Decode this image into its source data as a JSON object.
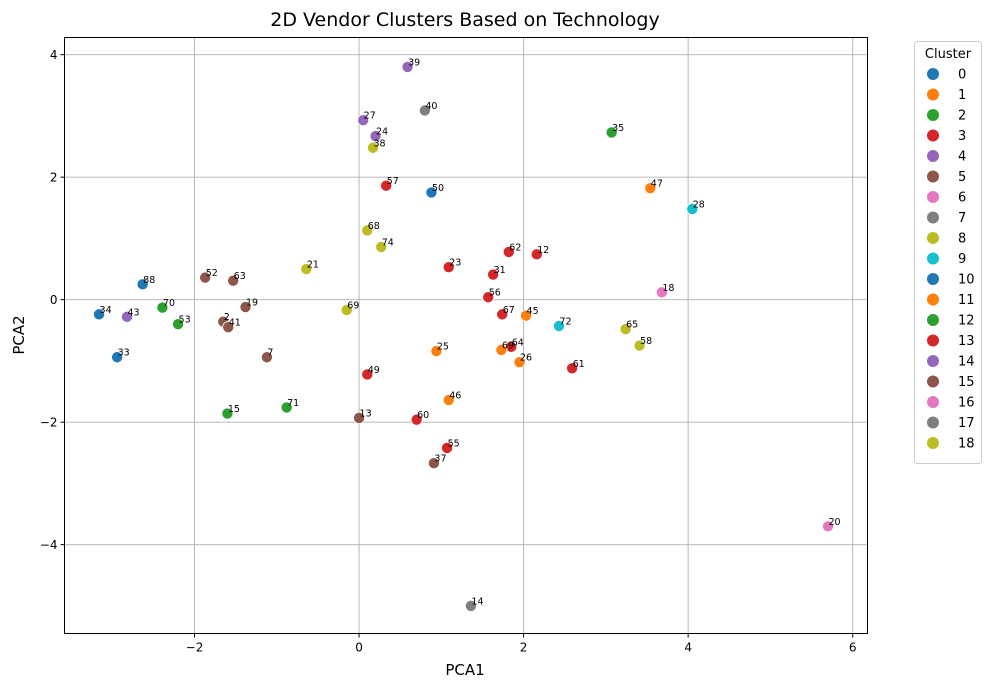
{
  "chart_data": {
    "type": "scatter",
    "title": "2D Vendor Clusters Based on Technology",
    "xlabel": "PCA1",
    "ylabel": "PCA2",
    "xlim": [
      -3.58,
      6.18
    ],
    "ylim": [
      -5.45,
      4.28
    ],
    "xticks": [
      -2,
      0,
      2,
      4,
      6
    ],
    "yticks": [
      -4,
      -2,
      0,
      2,
      4
    ],
    "xtick_labels": [
      "−2",
      "0",
      "2",
      "4",
      "6"
    ],
    "ytick_labels": [
      "−4",
      "−2",
      "0",
      "2",
      "4"
    ],
    "grid": true,
    "legend_title": "Cluster",
    "legend_position": "outside-right",
    "clusters": [
      {
        "name": "0",
        "color": "#1f77b4"
      },
      {
        "name": "1",
        "color": "#ff7f0e"
      },
      {
        "name": "2",
        "color": "#2ca02c"
      },
      {
        "name": "3",
        "color": "#d62728"
      },
      {
        "name": "4",
        "color": "#9467bd"
      },
      {
        "name": "5",
        "color": "#8c564b"
      },
      {
        "name": "6",
        "color": "#e377c2"
      },
      {
        "name": "7",
        "color": "#7f7f7f"
      },
      {
        "name": "8",
        "color": "#bcbd22"
      },
      {
        "name": "9",
        "color": "#17becf"
      },
      {
        "name": "10",
        "color": "#1f77b4"
      },
      {
        "name": "11",
        "color": "#ff7f0e"
      },
      {
        "name": "12",
        "color": "#2ca02c"
      },
      {
        "name": "13",
        "color": "#d62728"
      },
      {
        "name": "14",
        "color": "#9467bd"
      },
      {
        "name": "15",
        "color": "#8c564b"
      },
      {
        "name": "16",
        "color": "#e377c2"
      },
      {
        "name": "17",
        "color": "#7f7f7f"
      },
      {
        "name": "18",
        "color": "#bcbd22"
      }
    ],
    "points": [
      {
        "x": 0.59,
        "y": 3.8,
        "color": "#9467bd",
        "label": "39"
      },
      {
        "x": 0.05,
        "y": 2.93,
        "color": "#9467bd",
        "label": "27"
      },
      {
        "x": 0.8,
        "y": 3.09,
        "color": "#7f7f7f",
        "label": "40"
      },
      {
        "x": 0.2,
        "y": 2.67,
        "color": "#9467bd",
        "label": "24"
      },
      {
        "x": 0.17,
        "y": 2.48,
        "color": "#bcbd22",
        "label": "38"
      },
      {
        "x": 3.07,
        "y": 2.73,
        "color": "#2ca02c",
        "label": "35"
      },
      {
        "x": 0.33,
        "y": 1.86,
        "color": "#d62728",
        "label": "57"
      },
      {
        "x": 0.88,
        "y": 1.75,
        "color": "#1f77b4",
        "label": "50"
      },
      {
        "x": 3.54,
        "y": 1.82,
        "color": "#ff7f0e",
        "label": "47"
      },
      {
        "x": 4.05,
        "y": 1.48,
        "color": "#17becf",
        "label": "28"
      },
      {
        "x": 0.1,
        "y": 1.13,
        "color": "#bcbd22",
        "label": "68"
      },
      {
        "x": 0.27,
        "y": 0.86,
        "color": "#bcbd22",
        "label": "74"
      },
      {
        "x": -0.64,
        "y": 0.5,
        "color": "#bcbd22",
        "label": "21"
      },
      {
        "x": 1.82,
        "y": 0.78,
        "color": "#d62728",
        "label": "62"
      },
      {
        "x": 2.16,
        "y": 0.74,
        "color": "#d62728",
        "label": "12"
      },
      {
        "x": 1.09,
        "y": 0.53,
        "color": "#d62728",
        "label": "23"
      },
      {
        "x": 1.63,
        "y": 0.41,
        "color": "#d62728",
        "label": "31"
      },
      {
        "x": 1.57,
        "y": 0.04,
        "color": "#d62728",
        "label": "56"
      },
      {
        "x": 1.74,
        "y": -0.24,
        "color": "#d62728",
        "label": "67"
      },
      {
        "x": 2.03,
        "y": -0.26,
        "color": "#ff7f0e",
        "label": "45"
      },
      {
        "x": 2.43,
        "y": -0.43,
        "color": "#17becf",
        "label": "72"
      },
      {
        "x": 3.24,
        "y": -0.48,
        "color": "#bcbd22",
        "label": "65"
      },
      {
        "x": 3.41,
        "y": -0.75,
        "color": "#bcbd22",
        "label": "58"
      },
      {
        "x": 3.68,
        "y": 0.12,
        "color": "#e377c2",
        "label": "18"
      },
      {
        "x": 1.85,
        "y": -0.77,
        "color": "#d62728",
        "label": "64"
      },
      {
        "x": 1.73,
        "y": -0.82,
        "color": "#ff7f0e",
        "label": "69"
      },
      {
        "x": 1.95,
        "y": -1.02,
        "color": "#ff7f0e",
        "label": "26"
      },
      {
        "x": 2.59,
        "y": -1.12,
        "color": "#d62728",
        "label": "61"
      },
      {
        "x": 0.94,
        "y": -0.84,
        "color": "#ff7f0e",
        "label": "25"
      },
      {
        "x": 0.1,
        "y": -1.22,
        "color": "#d62728",
        "label": "49"
      },
      {
        "x": 1.09,
        "y": -1.64,
        "color": "#ff7f0e",
        "label": "46"
      },
      {
        "x": -0.15,
        "y": -0.17,
        "color": "#bcbd22",
        "label": "69"
      },
      {
        "x": 0.0,
        "y": -1.93,
        "color": "#8c564b",
        "label": "13"
      },
      {
        "x": 0.7,
        "y": -1.96,
        "color": "#d62728",
        "label": "60"
      },
      {
        "x": 1.07,
        "y": -2.42,
        "color": "#d62728",
        "label": "55"
      },
      {
        "x": 0.91,
        "y": -2.67,
        "color": "#8c564b",
        "label": "37"
      },
      {
        "x": 1.36,
        "y": -5.0,
        "color": "#7f7f7f",
        "label": "14"
      },
      {
        "x": 5.7,
        "y": -3.7,
        "color": "#e377c2",
        "label": "20"
      },
      {
        "x": -0.88,
        "y": -1.76,
        "color": "#2ca02c",
        "label": "71"
      },
      {
        "x": -1.6,
        "y": -1.86,
        "color": "#2ca02c",
        "label": "15"
      },
      {
        "x": -1.12,
        "y": -0.94,
        "color": "#8c564b",
        "label": "7"
      },
      {
        "x": -1.38,
        "y": -0.12,
        "color": "#8c564b",
        "label": "19"
      },
      {
        "x": -1.65,
        "y": -0.36,
        "color": "#8c564b",
        "label": "2"
      },
      {
        "x": -1.59,
        "y": -0.45,
        "color": "#8c564b",
        "label": "41"
      },
      {
        "x": -1.53,
        "y": 0.31,
        "color": "#8c564b",
        "label": "63"
      },
      {
        "x": -1.87,
        "y": 0.36,
        "color": "#8c564b",
        "label": "52"
      },
      {
        "x": -2.63,
        "y": 0.25,
        "color": "#1f77b4",
        "label": "88"
      },
      {
        "x": -2.39,
        "y": -0.13,
        "color": "#2ca02c",
        "label": "70"
      },
      {
        "x": -2.2,
        "y": -0.4,
        "color": "#2ca02c",
        "label": "53"
      },
      {
        "x": -2.82,
        "y": -0.28,
        "color": "#9467bd",
        "label": "43"
      },
      {
        "x": -3.16,
        "y": -0.24,
        "color": "#1f77b4",
        "label": "34"
      },
      {
        "x": -2.94,
        "y": -0.94,
        "color": "#1f77b4",
        "label": "33"
      }
    ]
  }
}
